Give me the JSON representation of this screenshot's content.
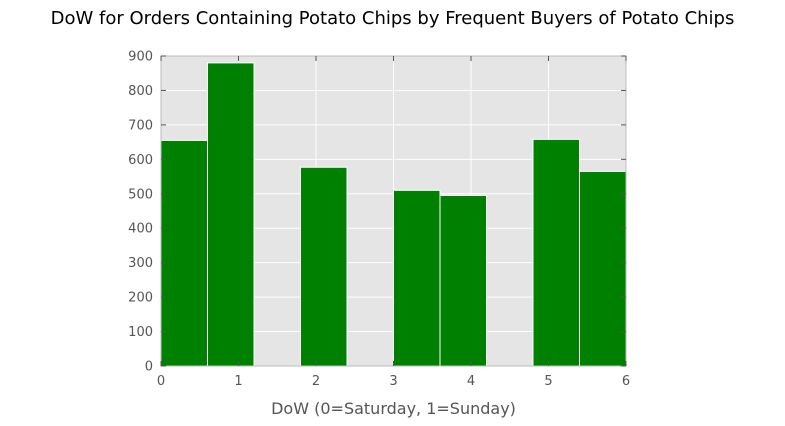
{
  "chart_data": {
    "type": "bar",
    "title": "DoW for Orders Containing Potato Chips by Frequent Buyers of Potato Chips",
    "xlabel": "DoW (0=Saturday, 1=Sunday)",
    "ylabel": "",
    "xlim": [
      0,
      6
    ],
    "ylim": [
      0,
      900
    ],
    "x_ticks": [
      0,
      1,
      2,
      3,
      4,
      5,
      6
    ],
    "y_ticks": [
      0,
      100,
      200,
      300,
      400,
      500,
      600,
      700,
      800,
      900
    ],
    "bins": [
      {
        "start": 0.0,
        "end": 0.6,
        "value": 655
      },
      {
        "start": 0.6,
        "end": 1.2,
        "value": 880
      },
      {
        "start": 1.2,
        "end": 1.8,
        "value": 0
      },
      {
        "start": 1.8,
        "end": 2.4,
        "value": 577
      },
      {
        "start": 2.4,
        "end": 3.0,
        "value": 0
      },
      {
        "start": 3.0,
        "end": 3.6,
        "value": 510
      },
      {
        "start": 3.6,
        "end": 4.2,
        "value": 495
      },
      {
        "start": 4.2,
        "end": 4.8,
        "value": 0
      },
      {
        "start": 4.8,
        "end": 5.4,
        "value": 658
      },
      {
        "start": 5.4,
        "end": 6.0,
        "value": 565
      }
    ],
    "bar_color": "#008000",
    "background_color": "#e5e5e5",
    "grid": true,
    "legend": "none"
  }
}
